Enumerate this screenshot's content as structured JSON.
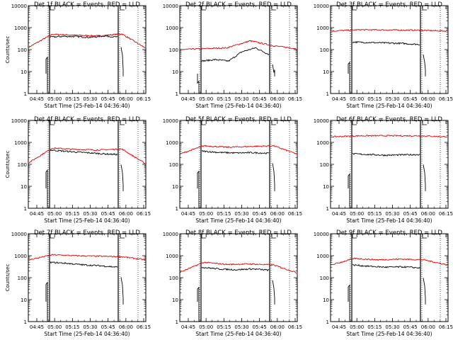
{
  "palette": {
    "events": "#000000",
    "lld": "#dd0000"
  },
  "chart_data": [
    {
      "type": "line",
      "title": "Det 1f BLACK = Events, RED = LLD",
      "ylabel": "Counts/sec",
      "xlabel": "Start Time (25-Feb-14 04:36:40)",
      "y_scale": "log",
      "ylim": [
        1,
        10000
      ],
      "y_ticks": [
        "1",
        "10",
        "100",
        "1000",
        "10000"
      ],
      "x_ticks": [
        "04:45",
        "05:00",
        "05:15",
        "05:30",
        "05:45",
        "06:00",
        "06:15"
      ],
      "black_levels": [
        370,
        400,
        390,
        360,
        420,
        370
      ],
      "red_levels": [
        130,
        500,
        450,
        420,
        520,
        120
      ],
      "grid": false
    },
    {
      "type": "line",
      "title": "Det 2f BLACK = Events, RED = LLD",
      "ylabel": "",
      "xlabel": "Start Time (25-Feb-14 04:36:40)",
      "y_scale": "log",
      "ylim": [
        1,
        10000
      ],
      "y_ticks": [
        "1",
        "10",
        "100",
        "1000",
        "10000"
      ],
      "x_ticks": [
        "04:45",
        "05:00",
        "05:15",
        "05:30",
        "05:45",
        "06:00",
        "06:15"
      ],
      "black_levels": [
        30,
        35,
        30,
        80,
        120,
        60
      ],
      "red_levels": [
        100,
        110,
        120,
        250,
        150,
        110
      ],
      "grid": false
    },
    {
      "type": "line",
      "title": "Det 3f BLACK = Events, RED = LLD",
      "ylabel": "",
      "xlabel": "Start Time (25-Feb-14 04:36:40)",
      "y_scale": "log",
      "ylim": [
        1,
        10000
      ],
      "y_ticks": [
        "1",
        "10",
        "100",
        "1000",
        "10000"
      ],
      "x_ticks": [
        "04:45",
        "05:00",
        "05:15",
        "05:30",
        "05:45",
        "06:00",
        "06:15"
      ],
      "black_levels": [
        220,
        210,
        200,
        190,
        170
      ],
      "red_levels": [
        700,
        800,
        780,
        760,
        700
      ],
      "grid": false
    },
    {
      "type": "line",
      "title": "Det 4f BLACK = Events, RED = LLD",
      "ylabel": "Counts/sec",
      "xlabel": "Start Time (25-Feb-14 04:36:40)",
      "y_scale": "log",
      "ylim": [
        1,
        10000
      ],
      "y_ticks": [
        "1",
        "10",
        "100",
        "1000",
        "10000"
      ],
      "x_ticks": [
        "04:45",
        "05:00",
        "05:15",
        "05:30",
        "05:45",
        "06:00",
        "06:15"
      ],
      "black_levels": [
        450,
        400,
        360,
        330,
        300,
        280
      ],
      "red_levels": [
        120,
        550,
        480,
        450,
        500,
        110
      ],
      "grid": false
    },
    {
      "type": "line",
      "title": "Det 5f BLACK = Events, RED = LLD",
      "ylabel": "",
      "xlabel": "Start Time (25-Feb-14 04:36:40)",
      "y_scale": "log",
      "ylim": [
        1,
        10000
      ],
      "y_ticks": [
        "1",
        "10",
        "100",
        "1000",
        "10000"
      ],
      "x_ticks": [
        "04:45",
        "05:00",
        "05:15",
        "05:30",
        "05:45",
        "06:00",
        "06:15"
      ],
      "black_levels": [
        400,
        350,
        330,
        340,
        320
      ],
      "red_levels": [
        300,
        700,
        600,
        650,
        700,
        300
      ],
      "grid": false
    },
    {
      "type": "line",
      "title": "Det 6f BLACK = Events, RED = LLD",
      "ylabel": "",
      "xlabel": "Start Time (25-Feb-14 04:36:40)",
      "y_scale": "log",
      "ylim": [
        1,
        10000
      ],
      "y_ticks": [
        "1",
        "10",
        "100",
        "1000",
        "10000"
      ],
      "x_ticks": [
        "04:45",
        "05:00",
        "05:15",
        "05:30",
        "05:45",
        "06:00",
        "06:15"
      ],
      "black_levels": [
        300,
        280,
        260,
        270,
        280
      ],
      "red_levels": [
        1800,
        2000,
        2000,
        2000,
        1800
      ],
      "grid": false
    },
    {
      "type": "line",
      "title": "Det 7f BLACK = Events, RED = LLD",
      "ylabel": "Counts/sec",
      "xlabel": "Start Time (25-Feb-14 04:36:40)",
      "y_scale": "log",
      "ylim": [
        1,
        10000
      ],
      "y_ticks": [
        "1",
        "10",
        "100",
        "1000",
        "10000"
      ],
      "x_ticks": [
        "04:45",
        "05:00",
        "05:15",
        "05:30",
        "05:45",
        "06:00",
        "06:15"
      ],
      "black_levels": [
        500,
        450,
        380,
        350,
        300
      ],
      "red_levels": [
        650,
        1100,
        1000,
        950,
        900,
        650
      ],
      "grid": false
    },
    {
      "type": "line",
      "title": "Det 8f BLACK = Events, RED = LLD",
      "ylabel": "",
      "xlabel": "Start Time (25-Feb-14 04:36:40)",
      "y_scale": "log",
      "ylim": [
        1,
        10000
      ],
      "y_ticks": [
        "1",
        "10",
        "100",
        "1000",
        "10000"
      ],
      "x_ticks": [
        "04:45",
        "05:00",
        "05:15",
        "05:30",
        "05:45",
        "06:00",
        "06:15"
      ],
      "black_levels": [
        300,
        250,
        230,
        250,
        220
      ],
      "red_levels": [
        180,
        500,
        400,
        420,
        380,
        170
      ],
      "grid": false
    },
    {
      "type": "line",
      "title": "Det 9f BLACK = Events, RED = LLD",
      "ylabel": "",
      "xlabel": "Start Time (25-Feb-14 04:36:40)",
      "y_scale": "log",
      "ylim": [
        1,
        10000
      ],
      "y_ticks": [
        "1",
        "10",
        "100",
        "1000",
        "10000"
      ],
      "x_ticks": [
        "04:45",
        "05:00",
        "05:15",
        "05:30",
        "05:45",
        "06:00",
        "06:15"
      ],
      "black_levels": [
        380,
        330,
        300,
        310,
        280
      ],
      "red_levels": [
        380,
        750,
        650,
        700,
        650,
        380
      ],
      "grid": false
    }
  ]
}
